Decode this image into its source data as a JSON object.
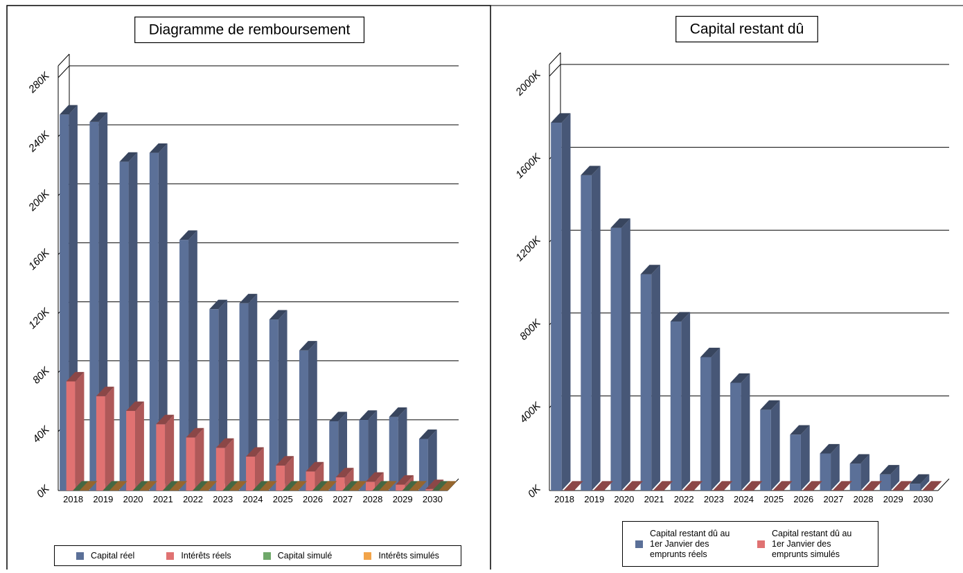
{
  "chart_data": [
    {
      "type": "bar3d",
      "title": "Diagramme de remboursement",
      "categories": [
        "2018",
        "2019",
        "2020",
        "2021",
        "2022",
        "2023",
        "2024",
        "2025",
        "2026",
        "2027",
        "2028",
        "2029",
        "2030"
      ],
      "series": [
        {
          "name": "Capital réel",
          "color": "#5b7098",
          "values": [
            255000,
            250000,
            223000,
            229000,
            170000,
            123000,
            127000,
            116000,
            95000,
            47000,
            48000,
            50000,
            35000
          ]
        },
        {
          "name": "Intérêts réels",
          "color": "#e07272",
          "values": [
            74000,
            64000,
            54000,
            45000,
            36000,
            29000,
            23000,
            17000,
            13000,
            9000,
            6000,
            4000,
            1000
          ]
        },
        {
          "name": "Capital simulé",
          "color": "#6fa86a",
          "values": [
            0,
            0,
            0,
            0,
            0,
            0,
            0,
            0,
            0,
            0,
            0,
            0,
            0
          ]
        },
        {
          "name": "Intérêts simulés",
          "color": "#f2a44a",
          "values": [
            0,
            0,
            0,
            0,
            0,
            0,
            0,
            0,
            0,
            0,
            0,
            0,
            0
          ]
        }
      ],
      "ylim": [
        0,
        280000
      ],
      "yticks": [
        {
          "value": 0,
          "label": "0K"
        },
        {
          "value": 40000,
          "label": "40K"
        },
        {
          "value": 80000,
          "label": "80K"
        },
        {
          "value": 120000,
          "label": "120K"
        },
        {
          "value": 160000,
          "label": "160K"
        },
        {
          "value": 200000,
          "label": "200K"
        },
        {
          "value": 240000,
          "label": "240K"
        },
        {
          "value": 280000,
          "label": "280K"
        }
      ],
      "grid": true,
      "legend": "bottom"
    },
    {
      "type": "bar3d",
      "title": "Capital restant dû",
      "categories": [
        "2018",
        "2019",
        "2020",
        "2021",
        "2022",
        "2023",
        "2024",
        "2025",
        "2026",
        "2027",
        "2028",
        "2029",
        "2030"
      ],
      "series": [
        {
          "name": "Capital restant dû au 1er Janvier des emprunts réels",
          "color": "#5b7098",
          "values": [
            1776000,
            1522000,
            1268000,
            1044000,
            816000,
            644000,
            520000,
            390000,
            270000,
            179000,
            130000,
            78000,
            33000
          ]
        },
        {
          "name": "Capital restant dû au 1er Janvier des emprunts simulés",
          "color": "#e07272",
          "values": [
            0,
            0,
            0,
            0,
            0,
            0,
            0,
            0,
            0,
            0,
            0,
            0,
            0
          ]
        }
      ],
      "ylim": [
        0,
        2000000
      ],
      "yticks": [
        {
          "value": 0,
          "label": "0K"
        },
        {
          "value": 400000,
          "label": "400K"
        },
        {
          "value": 800000,
          "label": "800K"
        },
        {
          "value": 1200000,
          "label": "1200K"
        },
        {
          "value": 1600000,
          "label": "1600K"
        },
        {
          "value": 2000000,
          "label": "2000K"
        }
      ],
      "grid": true,
      "legend": "bottom"
    }
  ]
}
